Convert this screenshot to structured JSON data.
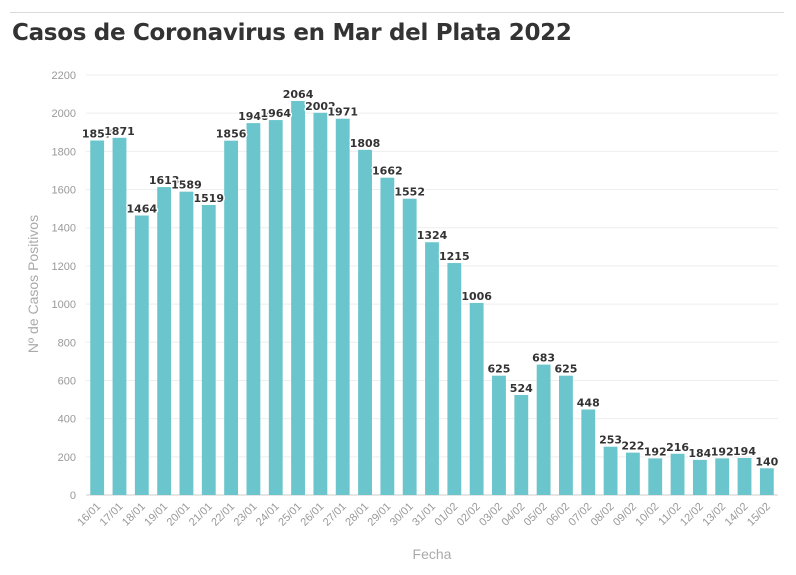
{
  "chart_data": {
    "type": "bar",
    "title": "Casos de Coronavirus en Mar del Plata 2022",
    "xlabel": "Fecha",
    "ylabel": "Nº de Casos Positivos",
    "ylim": [
      0,
      2200
    ],
    "yticks": [
      0,
      200,
      400,
      600,
      800,
      1000,
      1200,
      1400,
      1600,
      1800,
      2000,
      2200
    ],
    "grid": true,
    "legend": "none",
    "bar_color": "#6ac6cc",
    "categories": [
      "16/01",
      "17/01",
      "18/01",
      "19/01",
      "20/01",
      "21/01",
      "22/01",
      "23/01",
      "24/01",
      "25/01",
      "26/01",
      "27/01",
      "28/01",
      "29/01",
      "30/01",
      "31/01",
      "01/02",
      "02/02",
      "03/02",
      "04/02",
      "05/02",
      "06/02",
      "07/02",
      "08/02",
      "09/02",
      "10/02",
      "11/02",
      "12/02",
      "13/02",
      "14/02",
      "15/02"
    ],
    "values": [
      1857,
      1871,
      1464,
      1613,
      1589,
      1519,
      1856,
      1948,
      1964,
      2064,
      2002,
      1971,
      1808,
      1662,
      1552,
      1324,
      1215,
      1006,
      625,
      524,
      683,
      625,
      448,
      253,
      222,
      192,
      216,
      184,
      192,
      194,
      140
    ]
  }
}
